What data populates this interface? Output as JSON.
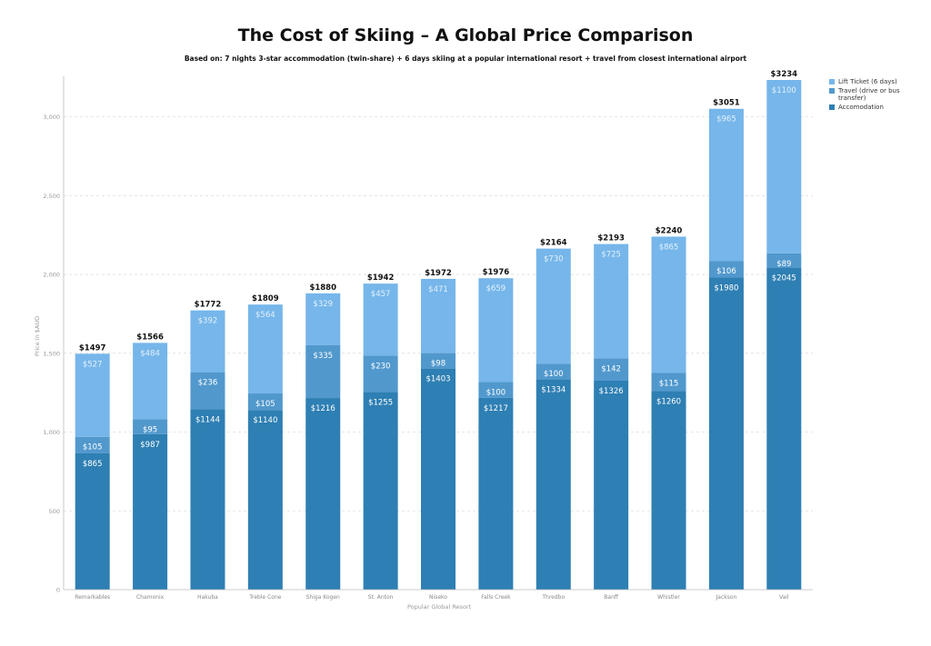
{
  "chart_data": {
    "type": "bar",
    "stacked": true,
    "title": "The Cost of Skiing – A Global Price Comparison",
    "subtitle": "Based on: 7 nights 3-star accommodation (twin-share) + 6 days skiing at a popular international resort + travel from closest international airport",
    "xlabel": "Popular Global Resort",
    "ylabel": "Price in $AUD",
    "ylim": [
      0,
      3234
    ],
    "yticks": [
      0,
      500,
      1000,
      1500,
      2000,
      2500,
      3000
    ],
    "ytick_labels": [
      "0",
      "500",
      "1,000",
      "1,500",
      "2,000",
      "2,500",
      "3,000"
    ],
    "grid": true,
    "legend_position": "top-right",
    "categories": [
      "Remarkables",
      "Chamonix",
      "Hakuba",
      "Treble Cone",
      "Shiga Kogen",
      "St. Anton",
      "Niseko",
      "Falls Creek",
      "Thredbo",
      "Banff",
      "Whistler",
      "Jackson",
      "Vail"
    ],
    "series": [
      {
        "name": "Accomodation",
        "color": "#2e7fb3",
        "values": [
          865,
          987,
          1144,
          1140,
          1216,
          1255,
          1403,
          1217,
          1334,
          1326,
          1260,
          1980,
          2045
        ]
      },
      {
        "name": "Travel (drive or bus transfer)",
        "color": "#5198cd",
        "values": [
          105,
          95,
          236,
          105,
          335,
          230,
          98,
          100,
          100,
          142,
          115,
          106,
          89
        ]
      },
      {
        "name": "Lift Ticket (6 days)",
        "color": "#76b6ea",
        "values": [
          527,
          484,
          392,
          564,
          329,
          457,
          471,
          659,
          730,
          725,
          865,
          965,
          1100
        ]
      }
    ],
    "totals": [
      1497,
      1566,
      1772,
      1809,
      1880,
      1942,
      1972,
      1976,
      2164,
      2193,
      2240,
      3051,
      3234
    ],
    "value_labels": {
      "Accomodation": [
        "$865",
        "$987",
        "$1144",
        "$1140",
        "$1216",
        "$1255",
        "$1403",
        "$1217",
        "$1334",
        "$1326",
        "$1260",
        "$1980",
        "$2045"
      ],
      "Travel (drive or bus transfer)": [
        "$105",
        "$95",
        "$236",
        "$105",
        "$335",
        "$230",
        "$98",
        "$100",
        "$100",
        "$142",
        "$115",
        "$106",
        "$89"
      ],
      "Lift Ticket (6 days)": [
        "$527",
        "$484",
        "$392",
        "$564",
        "$329",
        "$457",
        "$471",
        "$659",
        "$730",
        "$725",
        "$865",
        "$965",
        "$1100"
      ]
    },
    "total_labels": [
      "$1497",
      "$1566",
      "$1772",
      "$1809",
      "$1880",
      "$1942",
      "$1972",
      "$1976",
      "$2164",
      "$2193",
      "$2240",
      "$3051",
      "$3234"
    ]
  },
  "legend": {
    "items": [
      {
        "label": "Lift Ticket (6 days)",
        "color": "#76b6ea"
      },
      {
        "label": "Travel (drive or bus transfer)",
        "color": "#5198cd"
      },
      {
        "label": "Accomodation",
        "color": "#2e7fb3"
      }
    ]
  }
}
